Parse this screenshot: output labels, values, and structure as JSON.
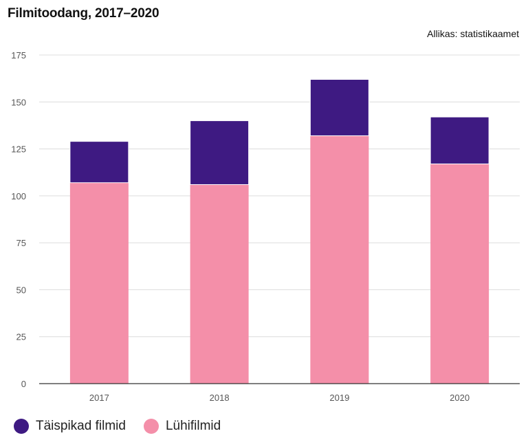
{
  "header": {
    "title": "Filmitoodang, 2017–2020",
    "source": "Allikas: statistikaamet"
  },
  "legend": [
    {
      "label": "Täispikad filmid",
      "color": "#3e1a82"
    },
    {
      "label": "Lühifilmid",
      "color": "#f48fa9"
    }
  ],
  "chart_data": {
    "type": "bar",
    "stacked": true,
    "title": "Filmitoodang, 2017–2020",
    "categories": [
      "2017",
      "2018",
      "2019",
      "2020"
    ],
    "series": [
      {
        "name": "Lühifilmid",
        "color": "#f48fa9",
        "values": [
          107,
          106,
          132,
          117
        ]
      },
      {
        "name": "Täispikad filmid",
        "color": "#3e1a82",
        "values": [
          22,
          34,
          30,
          25
        ]
      }
    ],
    "yticks": [
      0,
      25,
      50,
      75,
      100,
      125,
      150,
      175
    ],
    "ylim": [
      0,
      175
    ],
    "xlabel": "",
    "ylabel": "",
    "grid": true,
    "legend_position": "bottom-left"
  }
}
